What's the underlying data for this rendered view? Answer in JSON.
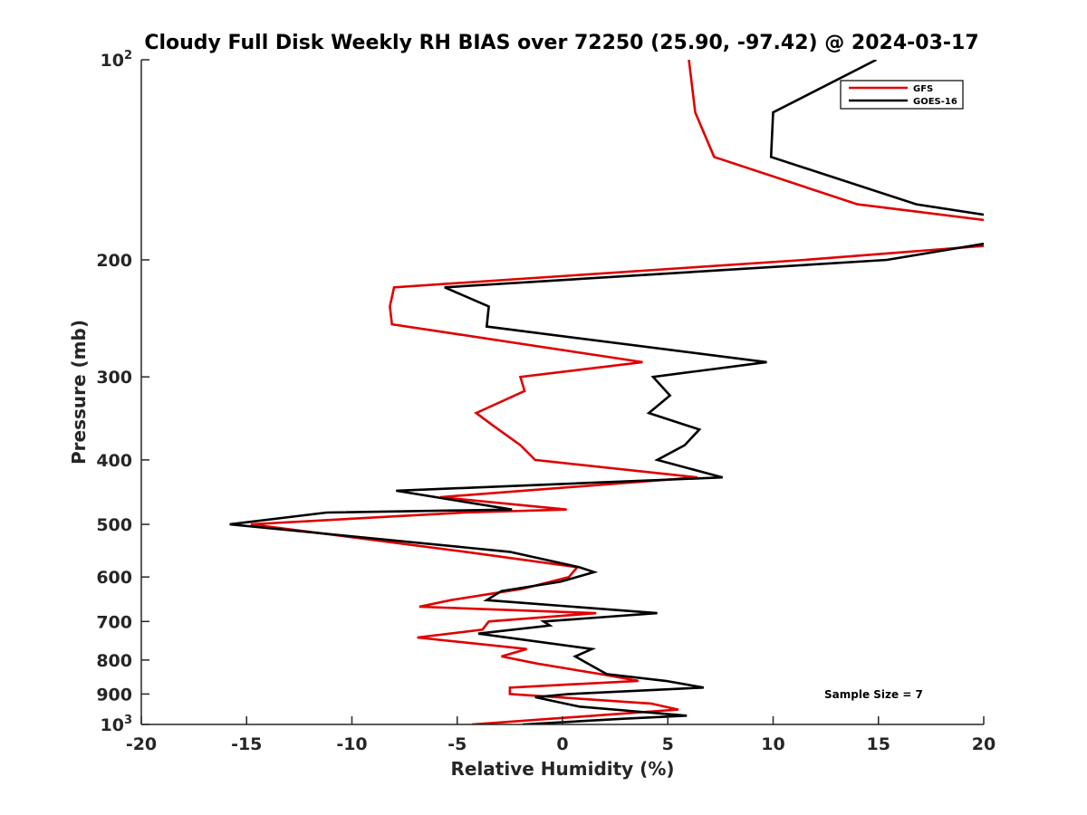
{
  "chart_data": {
    "type": "line",
    "title": "Cloudy Full Disk Weekly RH BIAS over 72250 (25.90, -97.42) @ 2024-03-17",
    "xlabel": "Relative Humidity (%)",
    "ylabel": "Pressure (mb)",
    "xlim": [
      -20,
      20
    ],
    "ylim": [
      1000,
      100
    ],
    "y_scale": "log",
    "y_reversed": true,
    "x_ticks": [
      "-20",
      "-15",
      "-10",
      "-5",
      "0",
      "5",
      "10",
      "15",
      "20"
    ],
    "y_ticks": [
      {
        "value": 100,
        "base": "10",
        "exp": "2"
      },
      {
        "value": 200,
        "label": "200"
      },
      {
        "value": 300,
        "label": "300"
      },
      {
        "value": 400,
        "label": "400"
      },
      {
        "value": 500,
        "label": "500"
      },
      {
        "value": 600,
        "label": "600"
      },
      {
        "value": 700,
        "label": "700"
      },
      {
        "value": 800,
        "label": "800"
      },
      {
        "value": 900,
        "label": "900"
      },
      {
        "value": 1000,
        "base": "10",
        "exp": "3"
      }
    ],
    "grid": false,
    "legend_position": "top-right",
    "series": [
      {
        "name": "GFS",
        "color": "#e00000",
        "points": [
          [
            6.0,
            100
          ],
          [
            6.3,
            120
          ],
          [
            7.2,
            140
          ],
          [
            14.0,
            165
          ],
          [
            20.5,
            175
          ],
          [
            20.5,
            190
          ],
          [
            11.5,
            200
          ],
          [
            -8.0,
            220
          ],
          [
            -8.2,
            235
          ],
          [
            -8.1,
            250
          ],
          [
            3.8,
            285
          ],
          [
            -2.0,
            300
          ],
          [
            -1.8,
            315
          ],
          [
            -4.1,
            340
          ],
          [
            -3.3,
            355
          ],
          [
            -2.0,
            380
          ],
          [
            -1.3,
            400
          ],
          [
            6.4,
            425
          ],
          [
            -5.8,
            455
          ],
          [
            0.2,
            475
          ],
          [
            -4.7,
            480
          ],
          [
            -14.8,
            500
          ],
          [
            -4.6,
            550
          ],
          [
            0.7,
            580
          ],
          [
            0.3,
            600
          ],
          [
            -1.9,
            625
          ],
          [
            -5.3,
            650
          ],
          [
            -6.8,
            665
          ],
          [
            1.6,
            680
          ],
          [
            -3.5,
            700
          ],
          [
            -3.8,
            720
          ],
          [
            -6.9,
            740
          ],
          [
            -1.7,
            770
          ],
          [
            -2.9,
            790
          ],
          [
            -1.2,
            810
          ],
          [
            1.8,
            840
          ],
          [
            3.6,
            860
          ],
          [
            -2.5,
            880
          ],
          [
            -2.5,
            900
          ],
          [
            4.2,
            930
          ],
          [
            5.5,
            950
          ],
          [
            -4.3,
            1000
          ]
        ]
      },
      {
        "name": "GOES-16",
        "color": "#000000",
        "points": [
          [
            14.9,
            100
          ],
          [
            10.0,
            120
          ],
          [
            9.9,
            140
          ],
          [
            16.8,
            165
          ],
          [
            20.5,
            172
          ],
          [
            20.5,
            188
          ],
          [
            15.4,
            200
          ],
          [
            -5.6,
            220
          ],
          [
            -3.5,
            235
          ],
          [
            -3.6,
            252
          ],
          [
            9.7,
            285
          ],
          [
            4.3,
            300
          ],
          [
            5.1,
            320
          ],
          [
            4.1,
            340
          ],
          [
            6.5,
            360
          ],
          [
            5.8,
            380
          ],
          [
            4.5,
            400
          ],
          [
            7.6,
            425
          ],
          [
            -7.9,
            445
          ],
          [
            -2.4,
            475
          ],
          [
            -11.2,
            480
          ],
          [
            -15.8,
            500
          ],
          [
            -2.5,
            550
          ],
          [
            0.8,
            580
          ],
          [
            1.5,
            590
          ],
          [
            -0.1,
            610
          ],
          [
            -2.9,
            630
          ],
          [
            -3.6,
            650
          ],
          [
            4.5,
            680
          ],
          [
            -0.9,
            700
          ],
          [
            -0.6,
            710
          ],
          [
            -4.0,
            730
          ],
          [
            1.4,
            770
          ],
          [
            0.6,
            790
          ],
          [
            1.2,
            810
          ],
          [
            2.1,
            840
          ],
          [
            4.9,
            860
          ],
          [
            6.7,
            880
          ],
          [
            0.3,
            900
          ],
          [
            -1.3,
            910
          ],
          [
            0.8,
            940
          ],
          [
            4.2,
            960
          ],
          [
            5.9,
            970
          ],
          [
            3.0,
            980
          ],
          [
            -1.9,
            1000
          ]
        ]
      }
    ],
    "annotations": [
      "Sample Size = 7"
    ]
  }
}
